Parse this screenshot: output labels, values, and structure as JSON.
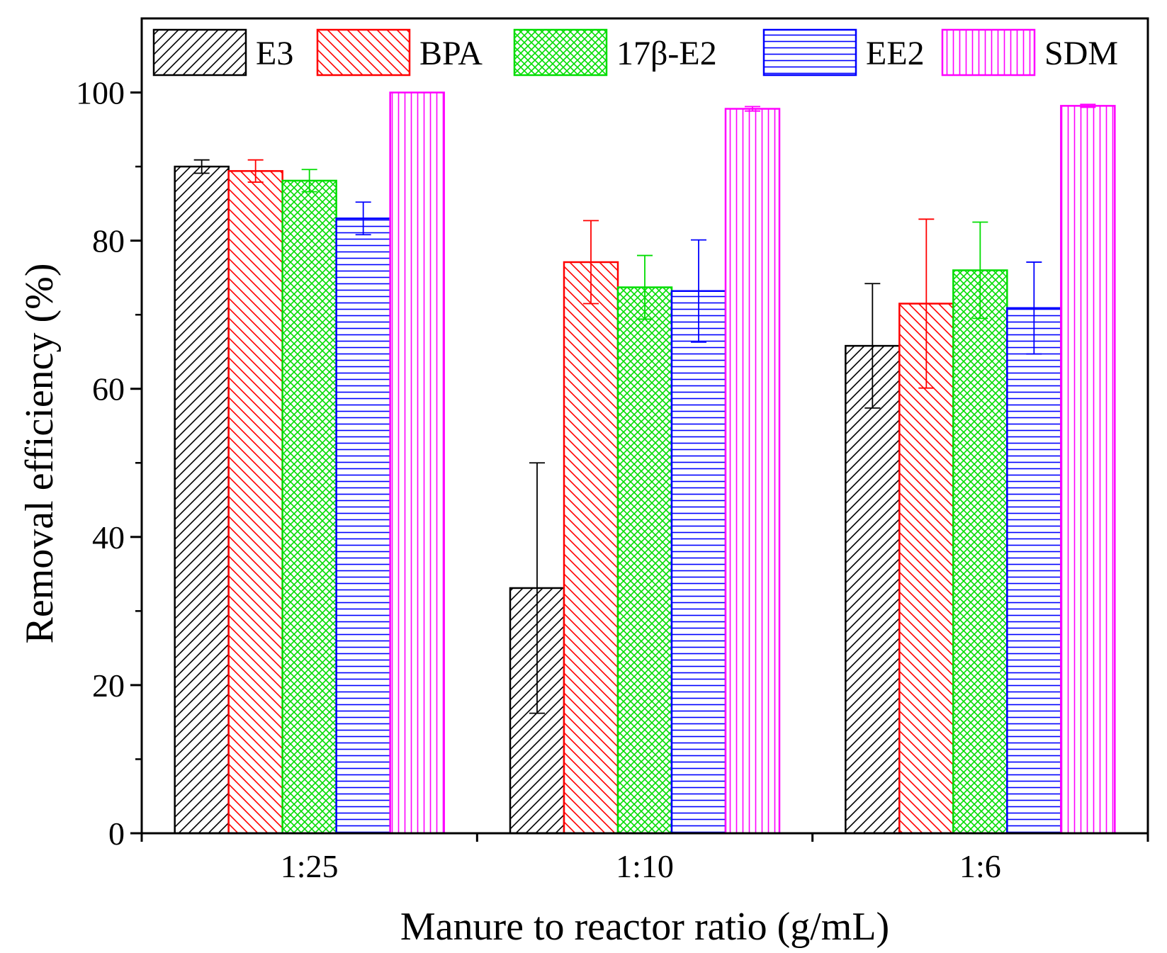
{
  "chart_data": {
    "type": "bar",
    "title": "",
    "xlabel": "Manure to reactor ratio (g/mL)",
    "ylabel": "Removal efficiency (%)",
    "ylim": [
      0,
      110
    ],
    "yticks": [
      0,
      20,
      40,
      60,
      80,
      100
    ],
    "ytick_labels": [
      "0",
      "20",
      "40",
      "60",
      "80",
      "100"
    ],
    "categories": [
      "1:25",
      "1:10",
      "1:6"
    ],
    "legend_position": "top",
    "series": [
      {
        "name": "E3",
        "color": "#000000",
        "pattern": "diag-forward",
        "values": [
          90.0,
          33.1,
          65.8
        ],
        "errors": [
          0.9,
          16.9,
          8.4
        ]
      },
      {
        "name": "BPA",
        "color": "#ff0000",
        "pattern": "diag-back",
        "values": [
          89.4,
          77.1,
          71.5
        ],
        "errors": [
          1.5,
          5.6,
          11.4
        ]
      },
      {
        "name": "17β-E2",
        "color": "#00dd00",
        "pattern": "crosshatch",
        "values": [
          88.1,
          73.7,
          76.0
        ],
        "errors": [
          1.5,
          4.3,
          6.5
        ]
      },
      {
        "name": "EE2",
        "color": "#0000ff",
        "pattern": "horizontal",
        "values": [
          83.0,
          73.2,
          70.9
        ],
        "errors": [
          2.2,
          6.9,
          6.2
        ]
      },
      {
        "name": "SDM",
        "color": "#ff00ff",
        "pattern": "vertical",
        "values": [
          100.0,
          97.8,
          98.2
        ],
        "errors": [
          0.0,
          0.3,
          0.2
        ]
      }
    ]
  }
}
